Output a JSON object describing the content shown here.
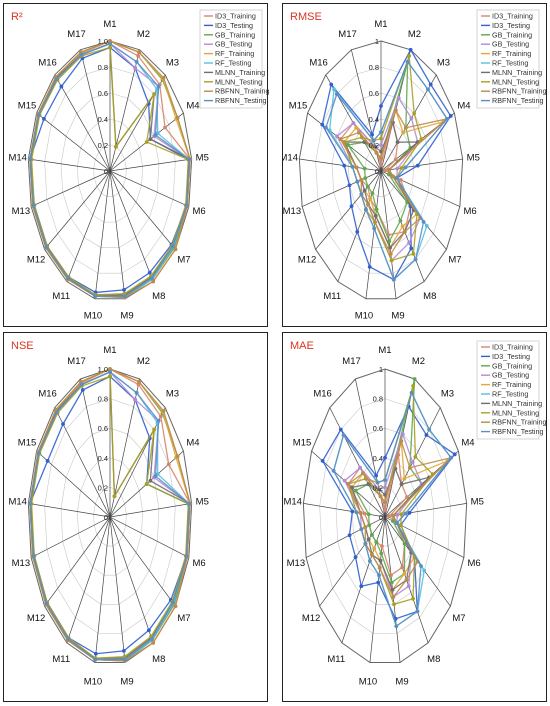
{
  "axes": [
    "M1",
    "M2",
    "M3",
    "M4",
    "M5",
    "M6",
    "M7",
    "M8",
    "M9",
    "M10",
    "M11",
    "M12",
    "M13",
    "M14",
    "M15",
    "M16",
    "M17"
  ],
  "ticks": [
    "0",
    "0.2",
    "0.4",
    "0.6",
    "0.8",
    "1.0"
  ],
  "rmse_ticks": [
    "0",
    "0.2",
    "0.4",
    "0.6",
    "0.8",
    "1"
  ],
  "legend": [
    "ID3_Training",
    "ID3_Testing",
    "GB_Training",
    "GB_Testing",
    "RF_Training",
    "RF_Testing",
    "MLNN_Training",
    "MLNN_Testing",
    "RBFNN_Training",
    "RBFNN_Testing"
  ],
  "colors": {
    "ID3_Training": "#d6866f",
    "ID3_Testing": "#2f5fd0",
    "GB_Training": "#5fa84b",
    "GB_Testing": "#b48ad8",
    "RF_Training": "#e0a838",
    "RF_Testing": "#54c0df",
    "MLNN_Training": "#6f6f6f",
    "MLNN_Testing": "#a8a020",
    "RBFNN_Training": "#c08a4a",
    "RBFNN_Testing": "#5b8fc4"
  },
  "chart_data": [
    {
      "type": "radar",
      "title": "R²",
      "rlim": [
        0,
        1
      ],
      "categories": [
        "M1",
        "M2",
        "M3",
        "M4",
        "M5",
        "M6",
        "M7",
        "M8",
        "M9",
        "M10",
        "M11",
        "M12",
        "M13",
        "M14",
        "M15",
        "M16",
        "M17"
      ],
      "series": [
        {
          "name": "ID3_Training",
          "values": [
            1.0,
            0.95,
            0.9,
            0.75,
            0.98,
            0.98,
            0.98,
            0.98,
            0.98,
            0.98,
            0.98,
            0.98,
            0.97,
            0.98,
            0.98,
            0.98,
            0.97
          ]
        },
        {
          "name": "ID3_Testing",
          "values": [
            0.95,
            0.85,
            0.7,
            0.55,
            0.96,
            0.97,
            0.94,
            0.92,
            0.93,
            0.95,
            0.96,
            0.96,
            0.96,
            0.98,
            0.9,
            0.88,
            0.93
          ]
        },
        {
          "name": "GB_Training",
          "values": [
            1.0,
            0.98,
            0.95,
            0.92,
            0.98,
            0.98,
            0.98,
            0.98,
            0.98,
            0.98,
            0.98,
            0.98,
            0.98,
            0.98,
            0.98,
            0.98,
            0.98
          ]
        },
        {
          "name": "GB_Testing",
          "values": [
            0.98,
            0.85,
            0.88,
            0.6,
            0.97,
            0.97,
            0.96,
            0.96,
            0.97,
            0.97,
            0.97,
            0.97,
            0.97,
            0.97,
            0.97,
            0.96,
            0.96
          ]
        },
        {
          "name": "RF_Training",
          "values": [
            1.0,
            0.98,
            0.96,
            0.9,
            0.98,
            0.98,
            1.0,
            1.0,
            0.99,
            0.98,
            0.98,
            0.98,
            0.98,
            0.98,
            0.98,
            0.98,
            0.98
          ]
        },
        {
          "name": "RF_Testing",
          "values": [
            0.98,
            0.9,
            0.85,
            0.65,
            0.97,
            0.97,
            0.97,
            0.98,
            0.99,
            0.98,
            0.97,
            0.97,
            0.97,
            0.97,
            0.97,
            0.96,
            0.96
          ]
        },
        {
          "name": "MLNN_Training",
          "values": [
            0.98,
            0.2,
            0.8,
            0.55,
            0.98,
            0.97,
            0.96,
            0.96,
            0.97,
            0.97,
            0.97,
            0.97,
            0.97,
            0.97,
            0.97,
            0.97,
            0.96
          ]
        },
        {
          "name": "MLNN_Testing",
          "values": [
            0.95,
            0.2,
            0.8,
            0.5,
            0.96,
            0.96,
            0.95,
            0.95,
            0.96,
            0.97,
            0.96,
            0.96,
            0.96,
            0.96,
            0.96,
            0.95,
            0.95
          ]
        },
        {
          "name": "RBFNN_Training",
          "values": [
            1.0,
            0.98,
            0.97,
            0.92,
            0.98,
            0.98,
            1.0,
            1.0,
            0.99,
            0.98,
            0.98,
            0.98,
            0.98,
            0.98,
            0.98,
            0.98,
            0.98
          ]
        },
        {
          "name": "RBFNN_Testing",
          "values": [
            0.98,
            0.9,
            0.88,
            0.62,
            0.97,
            0.97,
            0.96,
            0.97,
            0.98,
            0.98,
            0.97,
            0.97,
            0.97,
            0.98,
            0.97,
            0.96,
            0.96
          ]
        }
      ]
    },
    {
      "type": "radar",
      "title": "RMSE",
      "rlim": [
        0,
        1
      ],
      "categories": [
        "M1",
        "M2",
        "M3",
        "M4",
        "M5",
        "M6",
        "M7",
        "M8",
        "M9",
        "M10",
        "M11",
        "M12",
        "M13",
        "M14",
        "M15",
        "M16",
        "M17"
      ],
      "series": [
        {
          "name": "ID3_Training",
          "values": [
            0.05,
            0.4,
            0.3,
            0.2,
            0.05,
            0.25,
            0.45,
            0.55,
            0.5,
            0.3,
            0.25,
            0.2,
            0.25,
            0.3,
            0.55,
            0.5,
            0.2
          ]
        },
        {
          "name": "ID3_Testing",
          "values": [
            0.5,
            1.0,
            0.9,
            0.95,
            0.45,
            0.2,
            0.45,
            0.7,
            0.85,
            0.75,
            0.55,
            0.45,
            0.4,
            0.45,
            0.8,
            0.9,
            0.3
          ]
        },
        {
          "name": "GB_Training",
          "values": [
            0.1,
            0.9,
            0.45,
            0.4,
            0.1,
            0.1,
            0.4,
            0.45,
            0.55,
            0.3,
            0.2,
            0.2,
            0.2,
            0.2,
            0.45,
            0.3,
            0.15
          ]
        },
        {
          "name": "GB_Testing",
          "values": [
            0.2,
            0.6,
            0.55,
            0.5,
            0.2,
            0.2,
            0.6,
            0.65,
            0.7,
            0.4,
            0.3,
            0.3,
            0.3,
            0.35,
            0.6,
            0.5,
            0.2
          ]
        },
        {
          "name": "RF_Training",
          "values": [
            0.1,
            0.5,
            0.4,
            0.85,
            0.1,
            0.15,
            0.55,
            0.5,
            0.6,
            0.35,
            0.25,
            0.25,
            0.25,
            0.3,
            0.5,
            0.45,
            0.15
          ]
        },
        {
          "name": "RF_Testing",
          "values": [
            0.3,
            0.9,
            0.85,
            0.9,
            0.3,
            0.2,
            0.7,
            0.8,
            0.85,
            0.45,
            0.35,
            0.3,
            0.3,
            0.35,
            0.7,
            0.85,
            0.25
          ]
        },
        {
          "name": "MLNN_Training",
          "values": [
            0.15,
            0.4,
            0.3,
            0.5,
            0.1,
            0.15,
            0.5,
            0.55,
            0.6,
            0.35,
            0.3,
            0.25,
            0.25,
            0.3,
            0.5,
            0.3,
            0.2
          ]
        },
        {
          "name": "MLNN_Testing",
          "values": [
            0.25,
            0.95,
            0.6,
            0.55,
            0.25,
            0.2,
            0.55,
            0.75,
            0.7,
            0.4,
            0.35,
            0.3,
            0.3,
            0.35,
            0.5,
            0.35,
            0.25
          ]
        },
        {
          "name": "RBFNN_Training",
          "values": [
            0.1,
            0.5,
            0.45,
            0.9,
            0.1,
            0.15,
            0.6,
            0.55,
            0.65,
            0.4,
            0.3,
            0.3,
            0.25,
            0.3,
            0.55,
            0.4,
            0.15
          ]
        },
        {
          "name": "RBFNN_Testing",
          "values": [
            0.3,
            0.9,
            0.85,
            0.9,
            0.3,
            0.2,
            0.65,
            0.8,
            0.85,
            0.45,
            0.35,
            0.3,
            0.3,
            0.35,
            0.75,
            0.8,
            0.25
          ]
        }
      ]
    },
    {
      "type": "radar",
      "title": "NSE",
      "rlim": [
        0,
        1
      ],
      "categories": [
        "M1",
        "M2",
        "M3",
        "M4",
        "M5",
        "M6",
        "M7",
        "M8",
        "M9",
        "M10",
        "M11",
        "M12",
        "M13",
        "M14",
        "M15",
        "M16",
        "M17"
      ],
      "series": [
        {
          "name": "ID3_Training",
          "values": [
            1.0,
            0.96,
            0.92,
            0.8,
            0.98,
            0.98,
            0.98,
            0.98,
            0.98,
            0.98,
            0.98,
            0.98,
            0.97,
            0.98,
            0.98,
            0.98,
            0.97
          ]
        },
        {
          "name": "ID3_Testing",
          "values": [
            0.95,
            0.85,
            0.72,
            0.5,
            0.96,
            0.97,
            0.93,
            0.9,
            0.92,
            0.94,
            0.96,
            0.96,
            0.96,
            0.98,
            0.85,
            0.85,
            0.92
          ]
        },
        {
          "name": "GB_Training",
          "values": [
            1.0,
            0.98,
            0.95,
            0.92,
            0.98,
            0.98,
            0.98,
            0.98,
            0.98,
            0.98,
            0.98,
            0.98,
            0.98,
            0.98,
            0.98,
            0.98,
            0.98
          ]
        },
        {
          "name": "GB_Testing",
          "values": [
            0.98,
            0.85,
            0.88,
            0.6,
            0.97,
            0.97,
            0.96,
            0.96,
            0.97,
            0.97,
            0.97,
            0.97,
            0.97,
            0.97,
            0.97,
            0.96,
            0.96
          ]
        },
        {
          "name": "RF_Training",
          "values": [
            1.0,
            0.98,
            0.96,
            0.9,
            0.98,
            0.98,
            1.0,
            1.0,
            0.99,
            0.98,
            0.98,
            0.98,
            0.98,
            0.98,
            0.98,
            0.98,
            0.98
          ]
        },
        {
          "name": "RF_Testing",
          "values": [
            0.98,
            0.9,
            0.86,
            0.65,
            0.97,
            0.97,
            0.97,
            0.98,
            0.99,
            0.98,
            0.97,
            0.97,
            0.97,
            0.97,
            0.97,
            0.96,
            0.96
          ]
        },
        {
          "name": "MLNN_Training",
          "values": [
            0.98,
            0.15,
            0.8,
            0.55,
            0.98,
            0.97,
            0.96,
            0.96,
            0.97,
            0.97,
            0.97,
            0.97,
            0.97,
            0.97,
            0.97,
            0.97,
            0.96
          ]
        },
        {
          "name": "MLNN_Testing",
          "values": [
            0.95,
            0.15,
            0.8,
            0.5,
            0.96,
            0.96,
            0.95,
            0.95,
            0.96,
            0.97,
            0.96,
            0.96,
            0.96,
            0.96,
            0.96,
            0.95,
            0.95
          ]
        },
        {
          "name": "RBFNN_Training",
          "values": [
            1.0,
            0.98,
            0.97,
            0.92,
            0.98,
            0.98,
            1.0,
            1.0,
            0.99,
            0.98,
            0.98,
            0.98,
            0.98,
            0.98,
            0.98,
            0.98,
            0.98
          ]
        },
        {
          "name": "RBFNN_Testing",
          "values": [
            0.98,
            0.9,
            0.88,
            0.62,
            0.97,
            0.97,
            0.96,
            0.97,
            0.98,
            0.98,
            0.97,
            0.97,
            0.97,
            0.98,
            0.97,
            0.96,
            0.96
          ]
        }
      ]
    },
    {
      "type": "radar",
      "title": "MAE",
      "rlim": [
        0,
        1
      ],
      "categories": [
        "M1",
        "M2",
        "M3",
        "M4",
        "M5",
        "M6",
        "M7",
        "M8",
        "M9",
        "M10",
        "M11",
        "M12",
        "M13",
        "M14",
        "M15",
        "M16",
        "M17"
      ],
      "series": [
        {
          "name": "ID3_Training",
          "values": [
            0.05,
            0.45,
            0.3,
            0.3,
            0.05,
            0.15,
            0.3,
            0.4,
            0.4,
            0.2,
            0.2,
            0.2,
            0.2,
            0.25,
            0.5,
            0.45,
            0.15
          ]
        },
        {
          "name": "ID3_Testing",
          "values": [
            0.4,
            0.8,
            0.75,
            0.95,
            0.3,
            0.2,
            0.45,
            0.75,
            0.7,
            0.45,
            0.55,
            0.45,
            0.45,
            0.4,
            0.85,
            0.8,
            0.3
          ]
        },
        {
          "name": "GB_Training",
          "values": [
            0.1,
            1.0,
            0.45,
            0.5,
            0.1,
            0.1,
            0.3,
            0.45,
            0.45,
            0.25,
            0.2,
            0.2,
            0.2,
            0.2,
            0.4,
            0.3,
            0.15
          ]
        },
        {
          "name": "GB_Testing",
          "values": [
            0.2,
            0.6,
            0.5,
            0.5,
            0.15,
            0.15,
            0.4,
            0.55,
            0.55,
            0.3,
            0.3,
            0.3,
            0.3,
            0.3,
            0.55,
            0.45,
            0.2
          ]
        },
        {
          "name": "RF_Training",
          "values": [
            0.1,
            0.55,
            0.35,
            0.85,
            0.1,
            0.15,
            0.45,
            0.45,
            0.5,
            0.3,
            0.25,
            0.25,
            0.25,
            0.3,
            0.45,
            0.4,
            0.15
          ]
        },
        {
          "name": "RF_Testing",
          "values": [
            0.25,
            0.9,
            0.8,
            0.9,
            0.25,
            0.15,
            0.6,
            0.75,
            0.75,
            0.4,
            0.35,
            0.3,
            0.3,
            0.35,
            0.7,
            0.75,
            0.25
          ]
        },
        {
          "name": "MLNN_Training",
          "values": [
            0.15,
            0.35,
            0.3,
            0.6,
            0.1,
            0.15,
            0.4,
            0.5,
            0.5,
            0.3,
            0.3,
            0.25,
            0.25,
            0.3,
            0.45,
            0.3,
            0.2
          ]
        },
        {
          "name": "MLNN_Testing",
          "values": [
            0.25,
            0.95,
            0.55,
            0.65,
            0.2,
            0.2,
            0.45,
            0.65,
            0.6,
            0.35,
            0.3,
            0.3,
            0.3,
            0.35,
            0.5,
            0.35,
            0.25
          ]
        },
        {
          "name": "RBFNN_Training",
          "values": [
            0.1,
            0.55,
            0.45,
            0.9,
            0.1,
            0.15,
            0.5,
            0.5,
            0.55,
            0.35,
            0.3,
            0.3,
            0.25,
            0.3,
            0.5,
            0.4,
            0.15
          ]
        },
        {
          "name": "RBFNN_Testing",
          "values": [
            0.25,
            0.9,
            0.8,
            0.9,
            0.25,
            0.15,
            0.55,
            0.75,
            0.75,
            0.4,
            0.35,
            0.3,
            0.3,
            0.35,
            0.7,
            0.75,
            0.25
          ]
        }
      ]
    }
  ]
}
